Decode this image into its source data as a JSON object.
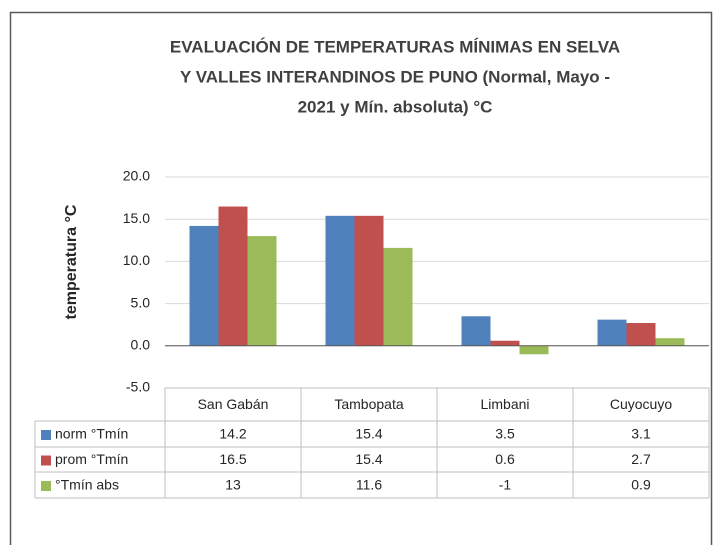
{
  "chart_data": {
    "type": "bar",
    "title": [
      "EVALUACIÓN DE TEMPERATURAS MÍNIMAS EN SELVA",
      "Y VALLES INTERANDINOS DE PUNO (Normal, Mayo -",
      "2021 y  Mín. absoluta) °C"
    ],
    "y_label": "temperatura °C",
    "categories": [
      "San Gabán",
      "Tambopata",
      "Limbani",
      "Cuyocuyo"
    ],
    "series": [
      {
        "name": "norm °Tmín",
        "color": "#4f81bd",
        "values": [
          14.2,
          15.4,
          3.5,
          3.1
        ]
      },
      {
        "name": "prom °Tmín",
        "color": "#c0504d",
        "values": [
          16.5,
          15.4,
          0.6,
          2.7
        ]
      },
      {
        "name": "°Tmín abs",
        "color": "#9bbb59",
        "values": [
          13,
          11.6,
          -1,
          0.9
        ]
      }
    ],
    "ylim": [
      -5,
      20
    ],
    "yticks": [
      {
        "value": -5,
        "label": "-5.0"
      },
      {
        "value": 0,
        "label": "0.0"
      },
      {
        "value": 5,
        "label": "5.0"
      },
      {
        "value": 10,
        "label": "10.0"
      },
      {
        "value": 15,
        "label": "15.0"
      },
      {
        "value": 20,
        "label": "20.0"
      }
    ],
    "grid": true
  }
}
